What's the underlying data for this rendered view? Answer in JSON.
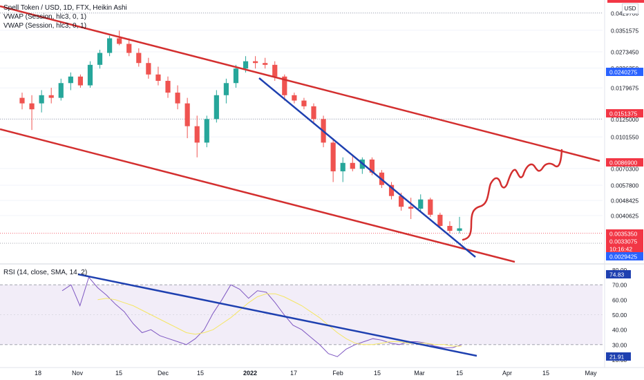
{
  "legend": {
    "title": "Spell Token / USD, 1D, FTX, Heikin Ashi",
    "vwap1": "VWAP (Session, hlc3, 0, 1)",
    "vwap2": "VWAP (Session, hlc3, 0, 1)",
    "rsi": "RSI (14, close, SMA, 14, 2)"
  },
  "currency_button": "USD",
  "colors": {
    "up": "#26a69a",
    "down": "#ef5350",
    "channel": "#d32f2f",
    "trend": "#1e40b0",
    "rsi_line": "#7e57c2",
    "rsi_ma": "#f5e663",
    "rsi_band": "#ede7f6",
    "label_blue": "#2962ff",
    "label_red": "#f23645"
  },
  "chart_data": [
    {
      "type": "candlestick",
      "style": "Heikin Ashi",
      "scale": "log",
      "price_ticks": [
        "0.0429700",
        "0.0351575",
        "0.0273450",
        "0.0226350",
        "0.0179675",
        "0.0125000",
        "0.0101550",
        "0.0070300",
        "0.0057800",
        "0.0048425",
        "0.0040625"
      ],
      "price_labels": [
        {
          "text": "0.0240275",
          "color": "blue"
        },
        {
          "text": "0.0151375",
          "color": "red"
        },
        {
          "text": "0.0086900",
          "color": "red"
        },
        {
          "text": "0.0035350",
          "color": "red"
        },
        {
          "text": "0.0033075",
          "color": "red"
        },
        {
          "text": "10:16:42",
          "color": "red"
        },
        {
          "text": "0.0029425",
          "color": "blue"
        }
      ],
      "ohlc": [
        [
          0.016,
          0.017,
          0.014,
          0.015
        ],
        [
          0.015,
          0.0165,
          0.011,
          0.014
        ],
        [
          0.015,
          0.0175,
          0.0135,
          0.0165
        ],
        [
          0.0165,
          0.018,
          0.015,
          0.016
        ],
        [
          0.016,
          0.02,
          0.0155,
          0.019
        ],
        [
          0.019,
          0.0215,
          0.0175,
          0.0205
        ],
        [
          0.0205,
          0.021,
          0.018,
          0.0185
        ],
        [
          0.0185,
          0.0245,
          0.018,
          0.0235
        ],
        [
          0.0235,
          0.028,
          0.0225,
          0.027
        ],
        [
          0.027,
          0.033,
          0.026,
          0.032
        ],
        [
          0.032,
          0.035,
          0.0295,
          0.03
        ],
        [
          0.03,
          0.032,
          0.026,
          0.027
        ],
        [
          0.027,
          0.0285,
          0.023,
          0.024
        ],
        [
          0.024,
          0.0255,
          0.02,
          0.021
        ],
        [
          0.021,
          0.023,
          0.0185,
          0.0195
        ],
        [
          0.0195,
          0.0205,
          0.016,
          0.017
        ],
        [
          0.017,
          0.0185,
          0.014,
          0.015
        ],
        [
          0.015,
          0.016,
          0.01,
          0.0115
        ],
        [
          0.0115,
          0.013,
          0.008,
          0.0095
        ],
        [
          0.0095,
          0.013,
          0.009,
          0.0125
        ],
        [
          0.0125,
          0.0175,
          0.012,
          0.0165
        ],
        [
          0.0165,
          0.02,
          0.015,
          0.019
        ],
        [
          0.019,
          0.0235,
          0.018,
          0.0225
        ],
        [
          0.0225,
          0.026,
          0.0215,
          0.0245
        ],
        [
          0.0245,
          0.026,
          0.0225,
          0.024
        ],
        [
          0.024,
          0.0255,
          0.0225,
          0.0235
        ],
        [
          0.0235,
          0.0245,
          0.0195,
          0.0205
        ],
        [
          0.0205,
          0.021,
          0.0155,
          0.0165
        ],
        [
          0.0165,
          0.017,
          0.015,
          0.0155
        ],
        [
          0.0155,
          0.016,
          0.014,
          0.0145
        ],
        [
          0.0145,
          0.015,
          0.012,
          0.0125
        ],
        [
          0.0125,
          0.013,
          0.009,
          0.0095
        ],
        [
          0.0095,
          0.01,
          0.006,
          0.0068
        ],
        [
          0.0068,
          0.008,
          0.006,
          0.0075
        ],
        [
          0.0075,
          0.0082,
          0.0068,
          0.007
        ],
        [
          0.007,
          0.008,
          0.0066,
          0.0078
        ],
        [
          0.0078,
          0.008,
          0.0065,
          0.0067
        ],
        [
          0.0067,
          0.0069,
          0.0056,
          0.0058
        ],
        [
          0.0058,
          0.006,
          0.0049,
          0.0051
        ],
        [
          0.0051,
          0.0053,
          0.0043,
          0.0045
        ],
        [
          0.0045,
          0.005,
          0.0039,
          0.0044
        ],
        [
          0.0044,
          0.0052,
          0.0043,
          0.0049
        ],
        [
          0.0049,
          0.005,
          0.004,
          0.0041
        ],
        [
          0.0041,
          0.0042,
          0.0035,
          0.0036
        ],
        [
          0.0036,
          0.0038,
          0.0033,
          0.0034
        ],
        [
          0.0034,
          0.004,
          0.0033,
          0.0035
        ]
      ],
      "x_ticks": [
        "18",
        "Nov",
        "15",
        "Dec",
        "15",
        "2022",
        "17",
        "Feb",
        "15",
        "Mar",
        "15",
        "Apr",
        "15",
        "May"
      ]
    },
    {
      "type": "line",
      "name": "RSI",
      "y_ticks": [
        "80.00",
        "70.00",
        "60.00",
        "50.00",
        "40.00",
        "30.00",
        "20.00"
      ],
      "band": [
        30,
        70
      ],
      "y_labels": [
        "74.83",
        "21.91"
      ],
      "rsi_values": [
        66,
        70,
        56,
        75,
        68,
        63,
        57,
        52,
        44,
        38,
        40,
        36,
        34,
        32,
        30,
        34,
        40,
        51,
        60,
        70,
        67,
        61,
        66,
        65,
        58,
        50,
        43,
        40,
        35,
        30,
        24,
        22,
        27,
        30,
        32,
        34,
        33,
        31,
        30,
        32,
        32,
        31,
        29,
        28,
        28,
        30
      ],
      "rsi_ma_values": [
        null,
        null,
        null,
        null,
        60,
        61,
        60,
        58,
        56,
        53,
        50,
        47,
        44,
        41,
        38,
        37,
        38,
        40,
        44,
        48,
        53,
        58,
        62,
        64,
        64,
        62,
        59,
        56,
        52,
        48,
        43,
        38,
        34,
        31,
        30,
        30,
        31,
        32,
        32,
        31,
        31,
        31,
        30,
        30,
        29,
        29
      ]
    }
  ]
}
